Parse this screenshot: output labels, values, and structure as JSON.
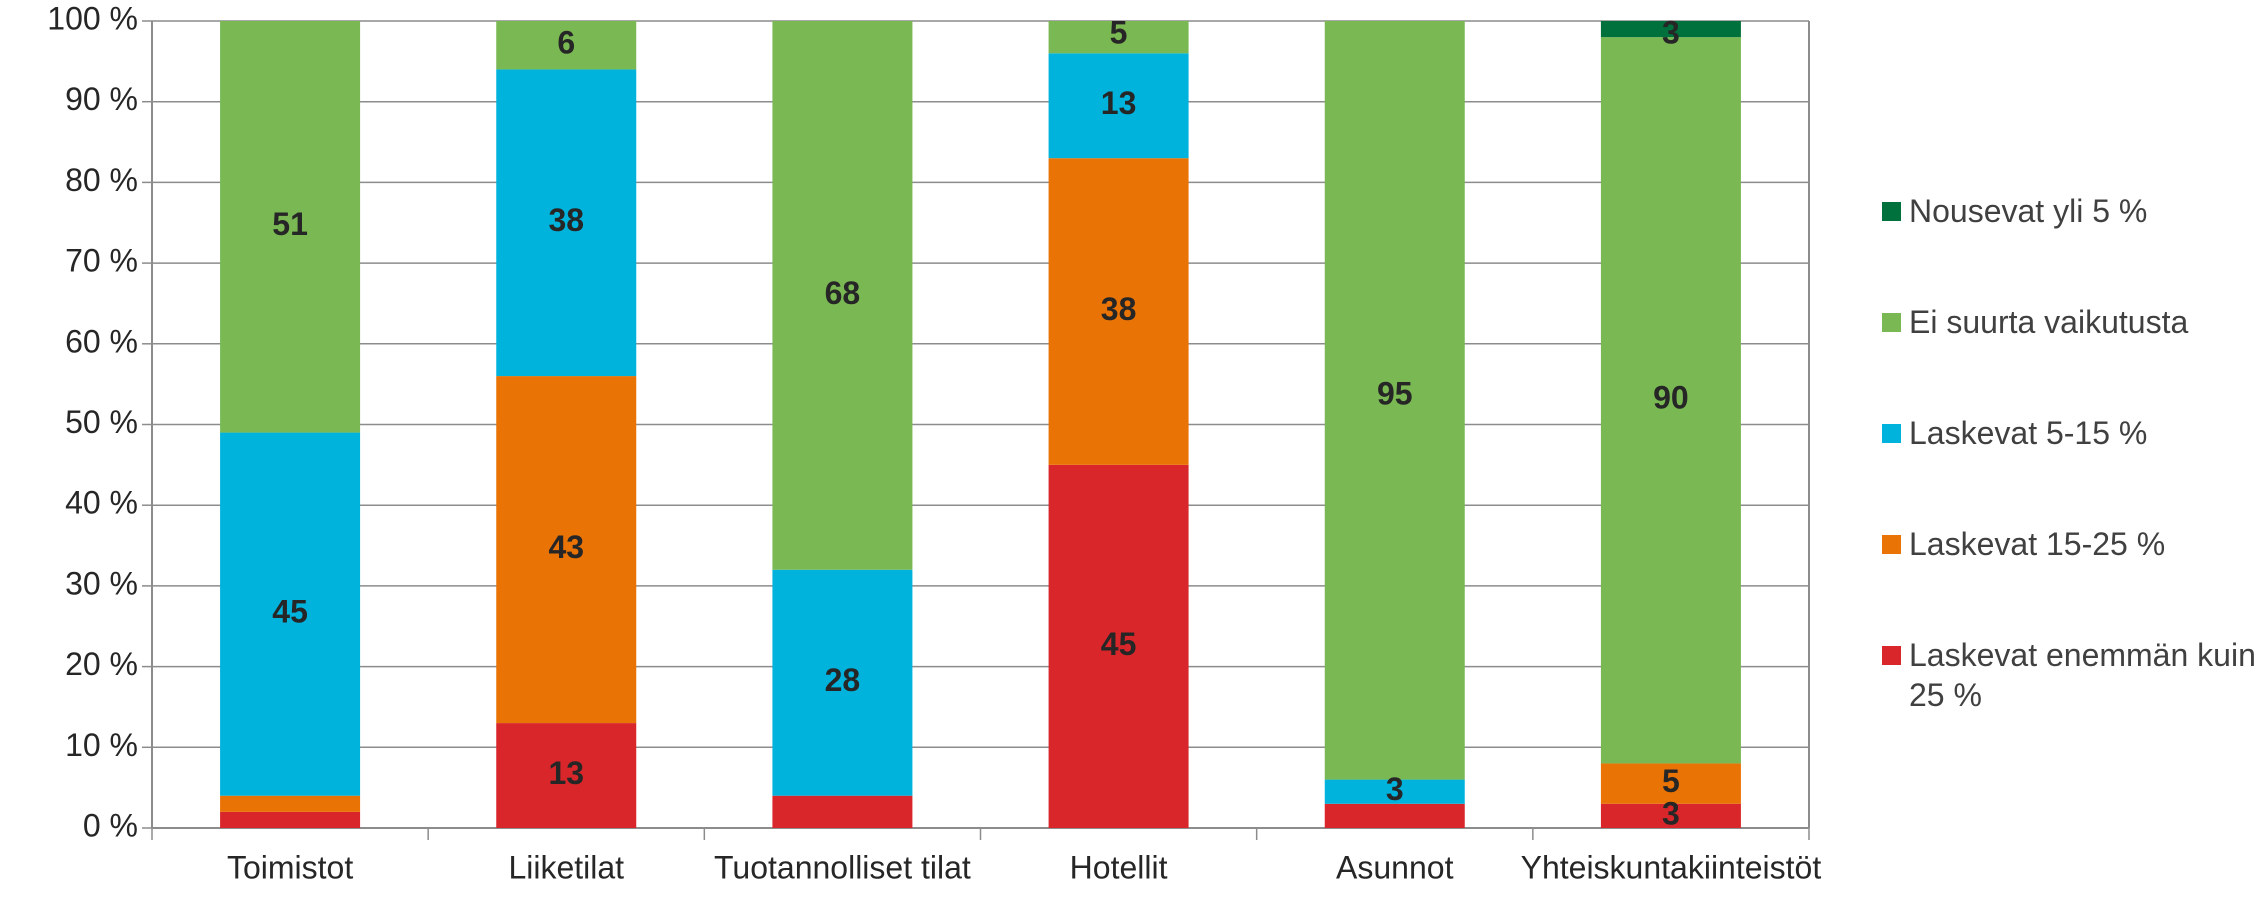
{
  "chart_data": {
    "type": "stacked_bar",
    "categories": [
      "Toimistot",
      "Liiketilat",
      "Tuotannolliset tilat",
      "Hotellit",
      "Asunnot",
      "Yhteiskuntakiinteistöt"
    ],
    "series": [
      {
        "name": "Laskevat enemmän kuin 25 %",
        "color": "#d9262a",
        "values": [
          2,
          13,
          4,
          45,
          3,
          3
        ],
        "value_labels": [
          null,
          "13",
          null,
          "45",
          null,
          "3"
        ]
      },
      {
        "name": "Laskevat 15-25 %",
        "color": "#ea7305",
        "values": [
          2,
          43,
          0,
          38,
          0,
          5
        ],
        "value_labels": [
          null,
          "43",
          null,
          "38",
          null,
          "5"
        ]
      },
      {
        "name": "Laskevat 5-15 %",
        "color": "#00b3dd",
        "values": [
          45,
          38,
          28,
          13,
          3,
          0
        ],
        "value_labels": [
          "45",
          "38",
          "28",
          "13",
          "3",
          null
        ]
      },
      {
        "name": "Ei suurta vaikutusta",
        "color": "#7ab853",
        "values": [
          51,
          6,
          68,
          5,
          95,
          90
        ],
        "value_labels": [
          "51",
          "6",
          "68",
          "5",
          "95",
          "90"
        ]
      },
      {
        "name": "Nousevat yli 5 %",
        "color": "#00703c",
        "values": [
          0,
          0,
          0,
          0,
          0,
          3
        ],
        "value_labels": [
          null,
          null,
          null,
          null,
          null,
          "3"
        ]
      }
    ],
    "ylim": [
      0,
      100
    ],
    "yticks": [
      {
        "value": 0,
        "label": "0 %"
      },
      {
        "value": 10,
        "label": "10 %"
      },
      {
        "value": 20,
        "label": "20 %"
      },
      {
        "value": 30,
        "label": "30 %"
      },
      {
        "value": 40,
        "label": "40 %"
      },
      {
        "value": 50,
        "label": "50 %"
      },
      {
        "value": 60,
        "label": "60 %"
      },
      {
        "value": 70,
        "label": "70 %"
      },
      {
        "value": 80,
        "label": "80 %"
      },
      {
        "value": 90,
        "label": "90 %"
      },
      {
        "value": 100,
        "label": "100 %"
      }
    ],
    "grid": true,
    "legend": "right"
  }
}
